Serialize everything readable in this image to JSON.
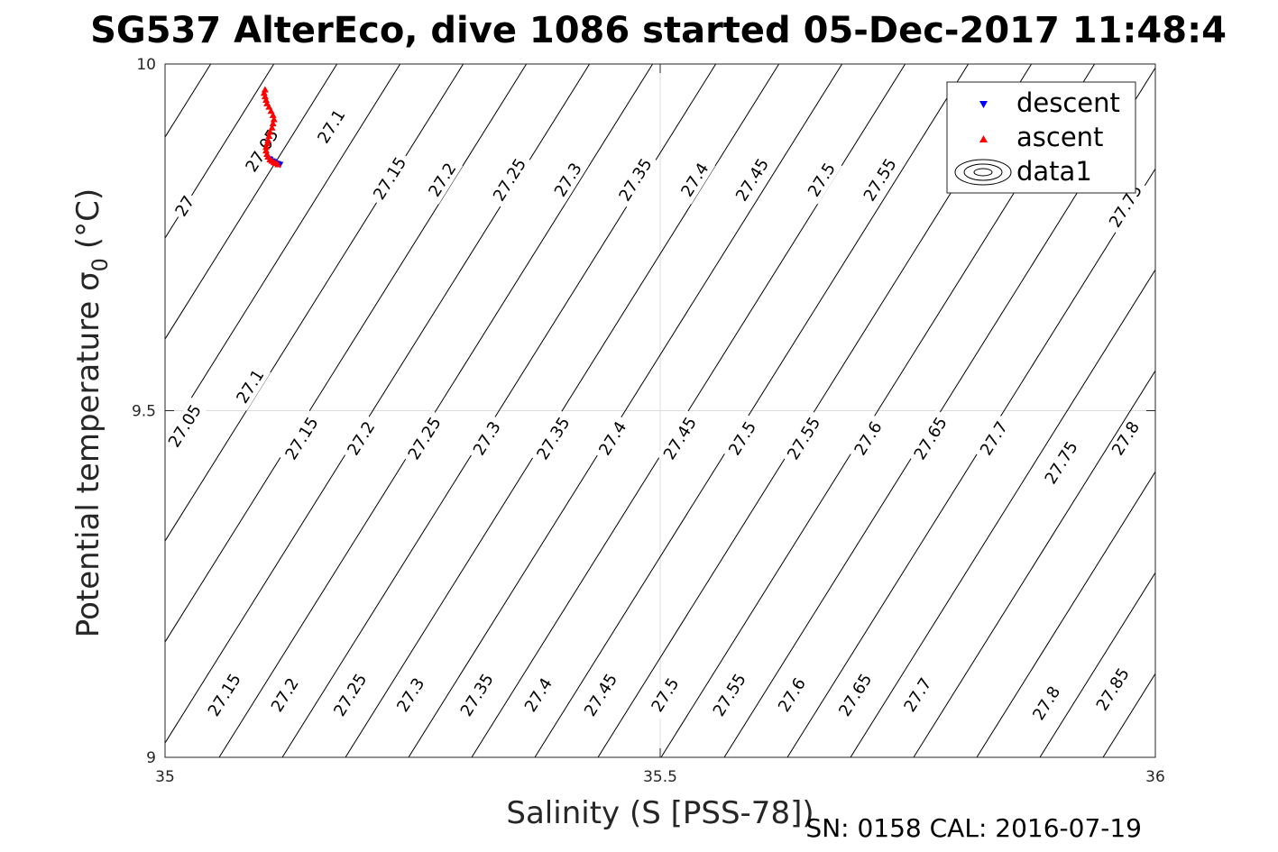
{
  "chart_data": {
    "type": "scatter",
    "title": "SG537 AlterEco, dive 1086 started 05-Dec-2017 11:48:4",
    "xlabel": "Salinity (S [PSS-78])",
    "ylabel": "Potential temperature σ",
    "ylabel_sub": "0",
    "ylabel_unit": "(°C)",
    "xlim": [
      35,
      36
    ],
    "ylim": [
      9,
      10
    ],
    "x_ticks": [
      35,
      35.5,
      36
    ],
    "y_ticks": [
      9,
      9.5,
      10
    ],
    "x_tick_labels": [
      "35",
      "35.5",
      "36"
    ],
    "y_tick_labels": [
      "9",
      "9.5",
      "10"
    ],
    "grid": true,
    "legend_position": "top-right",
    "footer": "SN: 0158  CAL: 2016-07-19",
    "series": [
      {
        "name": "descent",
        "marker": "triangle-down",
        "color": "#0000ff",
        "x": [
          35.105,
          35.106,
          35.108,
          35.11,
          35.112,
          35.114,
          35.116
        ],
        "y": [
          9.863,
          9.862,
          9.86,
          9.859,
          9.857,
          9.856,
          9.855
        ]
      },
      {
        "name": "ascent",
        "marker": "triangle-up",
        "color": "#ff0000",
        "x": [
          35.114,
          35.112,
          35.11,
          35.108,
          35.106,
          35.104,
          35.103,
          35.102,
          35.102,
          35.103,
          35.104,
          35.105,
          35.106,
          35.108,
          35.109,
          35.11,
          35.109,
          35.107,
          35.105,
          35.103,
          35.102,
          35.101,
          35.1,
          35.101
        ],
        "y": [
          9.855,
          9.857,
          9.858,
          9.86,
          9.862,
          9.866,
          9.87,
          9.875,
          9.88,
          9.885,
          9.89,
          9.896,
          9.902,
          9.908,
          9.914,
          9.92,
          9.926,
          9.932,
          9.938,
          9.943,
          9.948,
          9.953,
          9.958,
          9.963
        ]
      },
      {
        "name": "data1",
        "type": "contour",
        "color": "#000000"
      }
    ],
    "contour_labels": [
      {
        "text": "27.1",
        "x": 35.168,
        "y": 9.91
      },
      {
        "text": "27.05",
        "x": 35.098,
        "y": 9.875
      },
      {
        "text": "27",
        "x": 35.02,
        "y": 9.795
      },
      {
        "text": "27.15",
        "x": 35.227,
        "y": 9.835
      },
      {
        "text": "27.2",
        "x": 35.28,
        "y": 9.833
      },
      {
        "text": "27.25",
        "x": 35.348,
        "y": 9.833
      },
      {
        "text": "27.3",
        "x": 35.407,
        "y": 9.833
      },
      {
        "text": "27.35",
        "x": 35.475,
        "y": 9.833
      },
      {
        "text": "27.4",
        "x": 35.535,
        "y": 9.833
      },
      {
        "text": "27.45",
        "x": 35.593,
        "y": 9.833
      },
      {
        "text": "27.5",
        "x": 35.663,
        "y": 9.833
      },
      {
        "text": "27.55",
        "x": 35.722,
        "y": 9.833
      },
      {
        "text": "27.75",
        "x": 35.97,
        "y": 9.795
      },
      {
        "text": "27.05",
        "x": 35.02,
        "y": 9.478
      },
      {
        "text": "27.1",
        "x": 35.086,
        "y": 9.535
      },
      {
        "text": "27.15",
        "x": 35.138,
        "y": 9.46
      },
      {
        "text": "27.2",
        "x": 35.198,
        "y": 9.46
      },
      {
        "text": "27.25",
        "x": 35.262,
        "y": 9.46
      },
      {
        "text": "27.3",
        "x": 35.325,
        "y": 9.46
      },
      {
        "text": "27.35",
        "x": 35.392,
        "y": 9.46
      },
      {
        "text": "27.4",
        "x": 35.452,
        "y": 9.46
      },
      {
        "text": "27.45",
        "x": 35.52,
        "y": 9.46
      },
      {
        "text": "27.5",
        "x": 35.583,
        "y": 9.46
      },
      {
        "text": "27.55",
        "x": 35.645,
        "y": 9.46
      },
      {
        "text": "27.6",
        "x": 35.71,
        "y": 9.46
      },
      {
        "text": "27.65",
        "x": 35.773,
        "y": 9.46
      },
      {
        "text": "27.7",
        "x": 35.837,
        "y": 9.46
      },
      {
        "text": "27.75",
        "x": 35.905,
        "y": 9.425
      },
      {
        "text": "27.8",
        "x": 35.97,
        "y": 9.46
      },
      {
        "text": "27.15",
        "x": 35.06,
        "y": 9.09
      },
      {
        "text": "27.2",
        "x": 35.121,
        "y": 9.09
      },
      {
        "text": "27.25",
        "x": 35.187,
        "y": 9.09
      },
      {
        "text": "27.3",
        "x": 35.248,
        "y": 9.09
      },
      {
        "text": "27.35",
        "x": 35.315,
        "y": 9.09
      },
      {
        "text": "27.4",
        "x": 35.377,
        "y": 9.09
      },
      {
        "text": "27.45",
        "x": 35.44,
        "y": 9.09
      },
      {
        "text": "27.5",
        "x": 35.505,
        "y": 9.09
      },
      {
        "text": "27.55",
        "x": 35.57,
        "y": 9.09
      },
      {
        "text": "27.6",
        "x": 35.633,
        "y": 9.09
      },
      {
        "text": "27.65",
        "x": 35.697,
        "y": 9.09
      },
      {
        "text": "27.7",
        "x": 35.76,
        "y": 9.09
      },
      {
        "text": "27.8",
        "x": 35.89,
        "y": 9.078
      },
      {
        "text": "27.85",
        "x": 35.957,
        "y": 9.098
      }
    ]
  }
}
